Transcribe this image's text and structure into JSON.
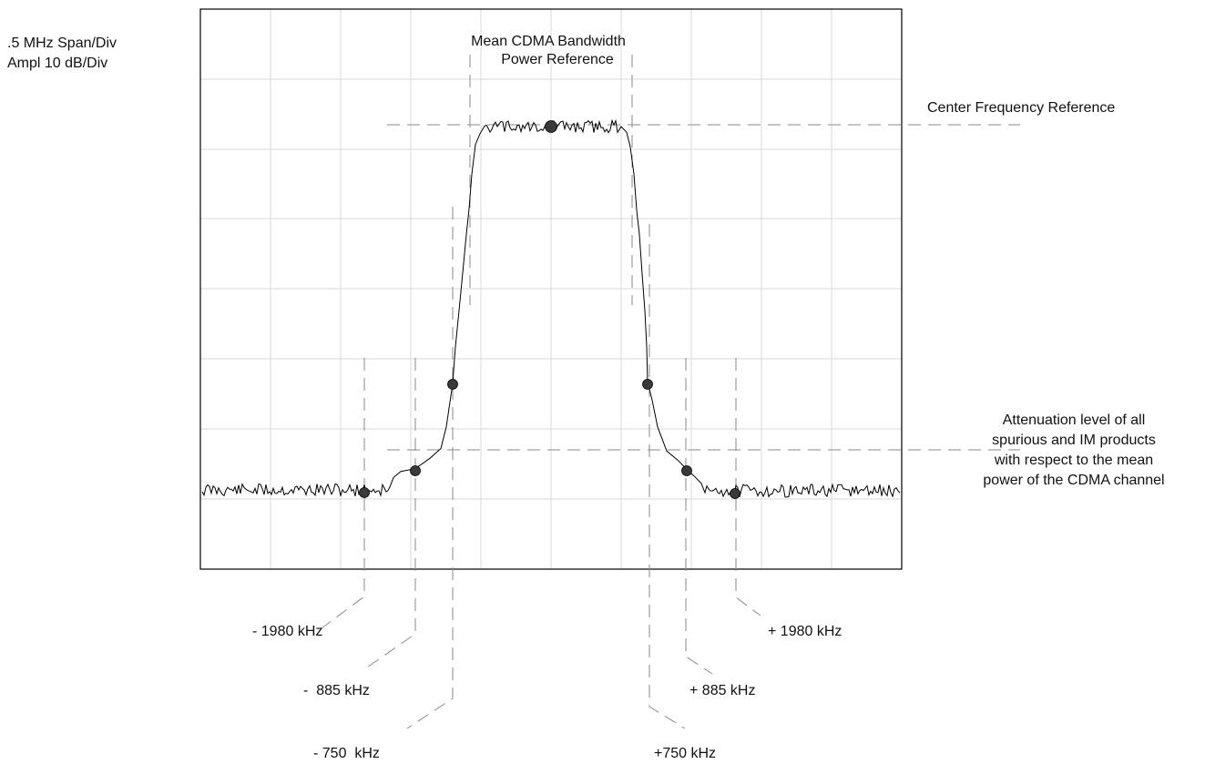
{
  "settings": {
    "span": ".5 MHz Span/Div",
    "ampl": "Ampl 10 dB/Div"
  },
  "labels": {
    "mean_power_line1": "Mean CDMA Bandwidth",
    "mean_power_line2": "Power Reference",
    "center_freq": "Center Frequency Reference",
    "atten_line1": "Attenuation level of all",
    "atten_line2": "spurious and IM products",
    "atten_line3": "with respect to the mean",
    "atten_line4": "power of the CDMA channel"
  },
  "offsets": {
    "neg_1980": "- 1980 kHz",
    "neg_885": "-  885 kHz",
    "neg_750": "- 750  kHz",
    "pos_1980": "+ 1980 kHz",
    "pos_885": "+ 885 kHz",
    "pos_750": "+750 kHz"
  },
  "colors": {
    "trace": "#000000",
    "grid": "#d9d9d9",
    "reference_lines": "#8a8a8a",
    "markers": "#3a3a3a"
  }
}
